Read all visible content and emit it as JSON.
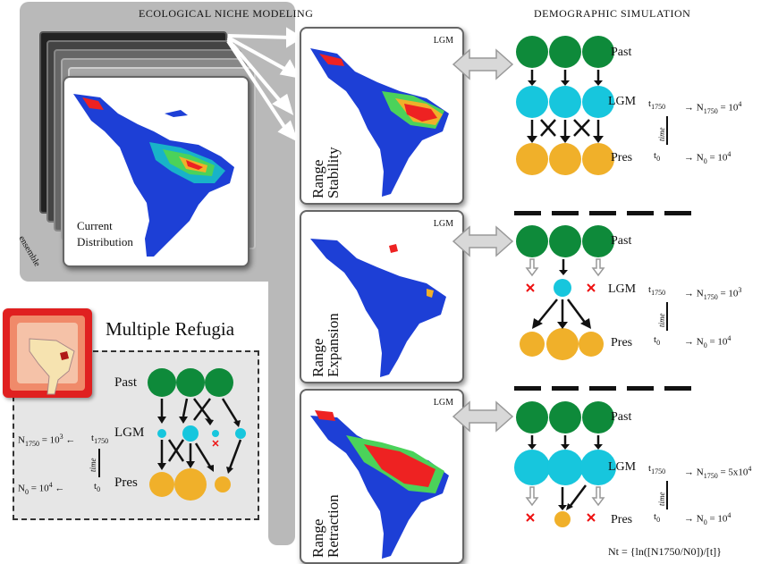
{
  "headers": {
    "enm": "ECOLOGICAL NICHE MODELING",
    "demo": "DEMOGRAPHIC SIMULATION"
  },
  "current": {
    "line1": "Current",
    "line2": "Distribution",
    "ensemble": "ensemble"
  },
  "models": {
    "lgm_tag": "LGM",
    "range_word": "Range",
    "stability": "Stability",
    "expansion": "Expansion",
    "retraction": "Retraction"
  },
  "sim": {
    "past": "Past",
    "lgm": "LGM",
    "pres": "Pres",
    "time": "time",
    "t1750": "t",
    "t1750_sub": "1750",
    "t0": "t",
    "t0_sub": "0",
    "n1750": "N",
    "n1750_sub": "1750",
    "n0": "N",
    "n0_sub": "0",
    "stability_n1750": " = 10",
    "stability_n1750_exp": "4",
    "stability_n0": " = 10",
    "stability_n0_exp": "4",
    "expansion_n1750": " = 10",
    "expansion_n1750_exp": "3",
    "expansion_n0": " = 10",
    "expansion_n0_exp": "4",
    "retraction_n1750": " = 5x10",
    "retraction_n1750_exp": "4",
    "retraction_n0": " = 10",
    "retraction_n0_exp": "4",
    "formula": "Nt = {ln([N1750/N0])/[t]}"
  },
  "refugia": {
    "title": "Multiple Refugia",
    "past": "Past",
    "lgm": "LGM",
    "pres": "Pres",
    "time": "time",
    "n1750": "N",
    "n1750_sub": "1750",
    "n1750_val": " = 10",
    "n1750_exp": "3",
    "t1750": "t",
    "t1750_sub": "1750",
    "n0": "N",
    "n0_sub": "0",
    "n0_val": " = 10",
    "n0_exp": "4",
    "t0": "t",
    "t0_sub": "0"
  },
  "colors": {
    "past": "#0e8a3a",
    "lgm": "#17c6dd",
    "pres": "#f0b02a",
    "panel": "#b9b9b9",
    "extinct": "#e11"
  }
}
